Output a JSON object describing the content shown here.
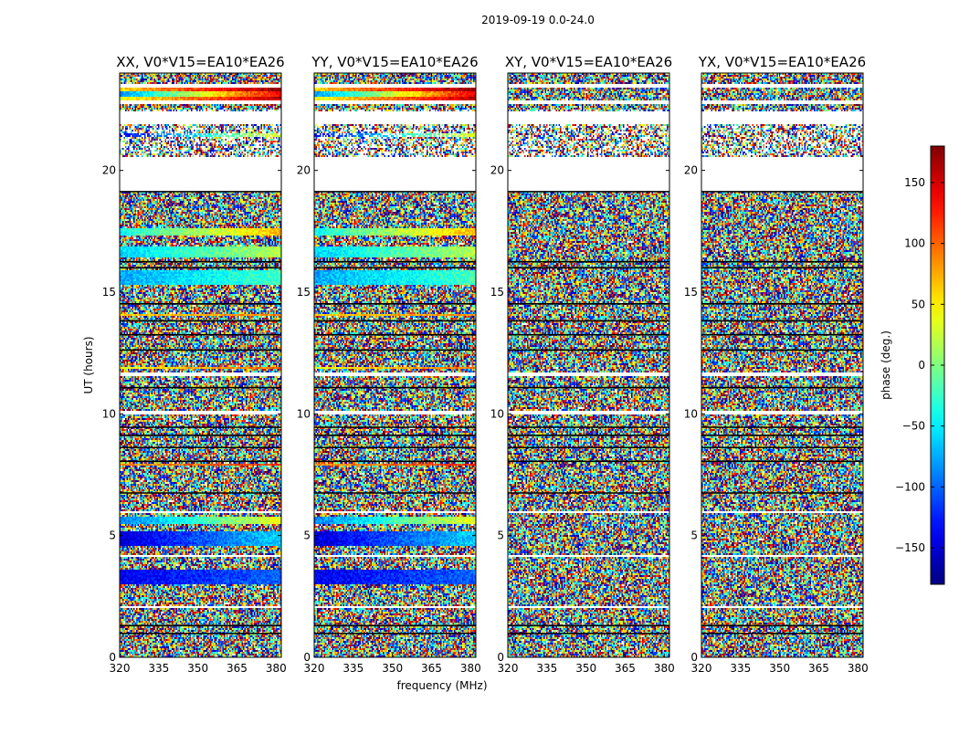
{
  "suptitle": "2019-09-19 0.0-24.0",
  "xlabel": "frequency (MHz)",
  "ylabel": "UT (hours)",
  "colorbar": {
    "label": "phase (deg.)",
    "ticks": [
      150,
      100,
      50,
      0,
      -50,
      -100,
      -150
    ],
    "tick_labels": [
      "150",
      "100",
      "50",
      "0",
      "−50",
      "−100",
      "−150"
    ],
    "range": [
      -180,
      180
    ],
    "colormap": "jet"
  },
  "chart_data": {
    "type": "heatmap",
    "title": "2019-09-19 0.0-24.0",
    "xlabel": "frequency (MHz)",
    "ylabel": "UT (hours)",
    "xlim": [
      320,
      382
    ],
    "ylim": [
      0,
      24
    ],
    "xticks": [
      320,
      335,
      350,
      365,
      380
    ],
    "yticks": [
      0,
      5,
      10,
      15,
      20
    ],
    "value_range": [
      -180,
      180
    ],
    "value_label": "phase (deg.)",
    "panels": [
      {
        "title": "XX, V0*V15=EA10*EA26",
        "coherent": true
      },
      {
        "title": "YY, V0*V15=EA10*EA26",
        "coherent": true
      },
      {
        "title": "XY, V0*V15=EA10*EA26",
        "coherent": false
      },
      {
        "title": "YX, V0*V15=EA10*EA26",
        "coherent": false
      }
    ],
    "gaps_hours": [
      [
        19.15,
        20.55
      ],
      [
        21.9,
        22.45
      ],
      [
        23.4,
        23.55
      ],
      [
        22.7,
        22.85
      ],
      [
        11.55,
        11.7
      ],
      [
        10.0,
        10.1
      ],
      [
        5.9,
        5.98
      ],
      [
        4.15,
        4.22
      ],
      [
        2.05,
        2.12
      ]
    ],
    "flagged_lines_hours": [
      0.98,
      1.3,
      6.75,
      8.05,
      8.62,
      9.12,
      9.45,
      11.08,
      12.62,
      13.25,
      13.82,
      14.52,
      16.0,
      16.25,
      19.13
    ],
    "coherent_bands": [
      {
        "t0": 22.85,
        "t1": 23.05,
        "phase_start": 40,
        "phase_end": 160
      },
      {
        "t0": 23.05,
        "t1": 23.25,
        "phase_start": -80,
        "phase_end": 140
      },
      {
        "t0": 23.25,
        "t1": 23.4,
        "phase_start": 60,
        "phase_end": 175
      },
      {
        "t0": 21.35,
        "t1": 21.55,
        "phase_start": -140,
        "phase_end": 40
      },
      {
        "t0": 17.3,
        "t1": 17.6,
        "phase_start": -40,
        "phase_end": 70
      },
      {
        "t0": 16.4,
        "t1": 16.9,
        "phase_start": -60,
        "phase_end": 20
      },
      {
        "t0": 15.3,
        "t1": 15.9,
        "phase_start": -75,
        "phase_end": -20
      },
      {
        "t0": 14.0,
        "t1": 14.1,
        "phase_start": 60,
        "phase_end": 90
      },
      {
        "t0": 11.85,
        "t1": 11.95,
        "phase_start": 40,
        "phase_end": 100
      },
      {
        "t0": 7.85,
        "t1": 7.95,
        "phase_start": 80,
        "phase_end": 120
      },
      {
        "t0": 5.5,
        "t1": 5.75,
        "phase_start": -90,
        "phase_end": 40
      },
      {
        "t0": 4.6,
        "t1": 5.2,
        "phase_start": -150,
        "phase_end": -60
      },
      {
        "t0": 3.0,
        "t1": 3.6,
        "phase_start": -140,
        "phase_end": -100
      }
    ]
  }
}
